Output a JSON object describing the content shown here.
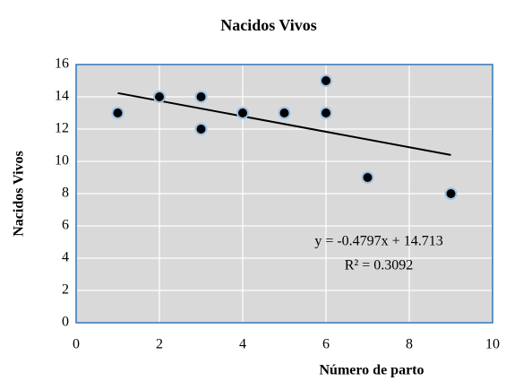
{
  "chart_data": {
    "type": "scatter",
    "title": "Nacidos Vivos",
    "x_label": "Número de parto",
    "y_label": "Nacidos Vivos",
    "series": [
      {
        "name": "Nacidos Vivos",
        "color": "#000000",
        "x": [
          1,
          2,
          3,
          3,
          4,
          5,
          6,
          6,
          7,
          9
        ],
        "values": [
          13,
          14,
          14,
          12,
          13,
          13,
          15,
          13,
          9,
          8
        ]
      }
    ],
    "xlim": [
      0,
      10
    ],
    "xticks": [
      0,
      2,
      4,
      6,
      8,
      10
    ],
    "ylim": [
      0,
      16
    ],
    "yticks": [
      0,
      2,
      4,
      6,
      8,
      10,
      12,
      14,
      16
    ],
    "grid": true,
    "trendline": {
      "slope": -0.4797,
      "intercept": 14.713,
      "r2": 0.3092,
      "label": "y = -0.4797x + 14.713",
      "r2_label": "R² = 0.3092"
    }
  }
}
